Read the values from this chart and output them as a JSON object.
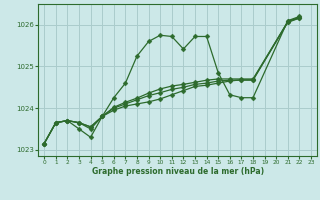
{
  "title": "Graphe pression niveau de la mer (hPa)",
  "background_color": "#cce8e8",
  "grid_color": "#aacccc",
  "line_color": "#2d6b2d",
  "marker_color": "#2d6b2d",
  "xlim": [
    -0.5,
    23.5
  ],
  "ylim": [
    1022.85,
    1026.5
  ],
  "yticks": [
    1023,
    1024,
    1025,
    1026
  ],
  "xticks": [
    0,
    1,
    2,
    3,
    4,
    5,
    6,
    7,
    8,
    9,
    10,
    11,
    12,
    13,
    14,
    15,
    16,
    17,
    18,
    19,
    20,
    21,
    22,
    23
  ],
  "marker_size": 2.5,
  "line_width": 0.9,
  "x_series": [
    [
      0,
      1,
      2,
      3,
      4,
      5,
      6,
      7,
      8,
      9,
      10,
      11,
      12,
      13,
      14,
      15,
      16,
      17,
      18,
      21,
      22
    ],
    [
      0,
      1,
      2,
      3,
      4,
      5,
      6,
      7,
      8,
      9,
      10,
      11,
      12,
      13,
      14,
      15,
      16,
      17,
      18,
      21,
      22
    ],
    [
      0,
      1,
      2,
      3,
      4,
      5,
      6,
      7,
      8,
      9,
      10,
      11,
      12,
      13,
      14,
      15,
      16,
      17,
      18,
      21,
      22
    ],
    [
      0,
      1,
      2,
      3,
      4,
      5,
      6,
      7,
      8,
      9,
      10,
      11,
      12,
      13,
      14,
      15,
      16,
      17,
      18,
      21,
      22
    ]
  ],
  "y_series": [
    [
      1023.15,
      1023.65,
      1023.7,
      1023.65,
      1023.5,
      1023.8,
      1024.25,
      1024.6,
      1025.25,
      1025.6,
      1025.75,
      1025.72,
      1025.42,
      1025.72,
      1025.72,
      1024.85,
      1024.32,
      1024.25,
      1024.25,
      1026.1,
      1026.2
    ],
    [
      1023.15,
      1023.65,
      1023.7,
      1023.5,
      1023.3,
      1023.8,
      1023.95,
      1024.05,
      1024.1,
      1024.15,
      1024.22,
      1024.32,
      1024.42,
      1024.52,
      1024.55,
      1024.6,
      1024.65,
      1024.68,
      1024.68,
      1026.08,
      1026.18
    ],
    [
      1023.15,
      1023.65,
      1023.7,
      1023.65,
      1023.55,
      1023.8,
      1024.0,
      1024.1,
      1024.2,
      1024.3,
      1024.37,
      1024.45,
      1024.5,
      1024.57,
      1024.6,
      1024.65,
      1024.67,
      1024.67,
      1024.67,
      1026.06,
      1026.16
    ],
    [
      1023.15,
      1023.65,
      1023.7,
      1023.65,
      1023.55,
      1023.8,
      1024.02,
      1024.14,
      1024.24,
      1024.36,
      1024.46,
      1024.53,
      1024.57,
      1024.62,
      1024.67,
      1024.7,
      1024.7,
      1024.7,
      1024.7,
      1026.07,
      1026.17
    ]
  ]
}
